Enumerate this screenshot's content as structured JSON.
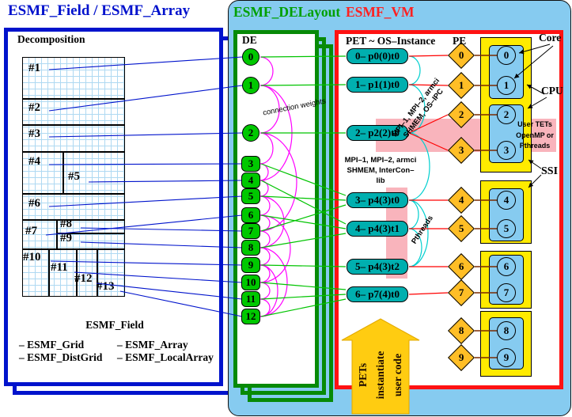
{
  "titles": {
    "field_array": "ESMF_Field / ESMF_Array",
    "delayout": "ESMF_DELayout",
    "vm": "ESMF_VM"
  },
  "decomposition": {
    "heading": "Decomposition",
    "region_labels": [
      "#1",
      "#2",
      "#3",
      "#4",
      "#5",
      "#6",
      "#7",
      "#8",
      "#9",
      "#10",
      "#11",
      "#12",
      "#13"
    ],
    "footer_title": "ESMF_Field",
    "bullets_left": [
      "– ESMF_Grid",
      "– ESMF_DistGrid"
    ],
    "bullets_right": [
      "– ESMF_Array",
      "– ESMF_LocalArray"
    ]
  },
  "delayout": {
    "header": "DE",
    "de_labels": [
      "0",
      "1",
      "2",
      "3",
      "4",
      "5",
      "6",
      "7",
      "8",
      "9",
      "10",
      "11",
      "12"
    ],
    "connection_label": "connection weights"
  },
  "vm": {
    "pet_header": "PET ~ OS–Instance",
    "pe_header": "PE",
    "pets": [
      "0– p0(0)t0",
      "1– p1(1)t0",
      "2– p2(2)t0",
      "3– p4(3)t0",
      "4– p4(3)t1",
      "5– p4(3)t2",
      "6– p7(4)t0"
    ],
    "pe_labels": [
      "0",
      "1",
      "2",
      "3",
      "4",
      "5",
      "6",
      "7",
      "8",
      "9"
    ],
    "core_labels": [
      "0",
      "1",
      "2",
      "3",
      "4",
      "5",
      "6",
      "7",
      "8",
      "9"
    ],
    "annotations": {
      "core": "Core",
      "cpu": "CPU",
      "ssi": "SSI",
      "mpi_diag_l1": "MPI–1, MPI–2, armci",
      "mpi_diag_l2": "SHMEM, OS–IPC",
      "mpi_horiz_l1": "MPI–1, MPI–2, armci",
      "mpi_horiz_l2": "SHMEM, InterCon–lib",
      "pthreads": "Pthreads",
      "user_tets": [
        "User TETs",
        "OpenMP or",
        "Pthreads"
      ]
    },
    "arrow_lines": [
      "PETs",
      "instantiate",
      "user code"
    ]
  },
  "colors": {
    "panel_blue": "#86CBF0",
    "box_blue": "#0013CC",
    "box_green": "#078A07",
    "box_red": "#FF1212",
    "title_green": "#00A000",
    "title_red": "#FF2020",
    "de_fill": "#00C800",
    "pet_fill": "#00AFAF",
    "pe_fill": "#FFBE26",
    "core_yellow": "#FFEB00",
    "cpu_blue": "#86CBF0",
    "pink_band": "#F9B4BC",
    "arrow_gold": "#FFCC11",
    "line_blue": "#0013CC",
    "line_green": "#00C400",
    "line_red": "#FF0000",
    "line_brown": "#7A2A00",
    "arc_magenta": "#FF00FF",
    "arc_cyan": "#00CFCF"
  }
}
